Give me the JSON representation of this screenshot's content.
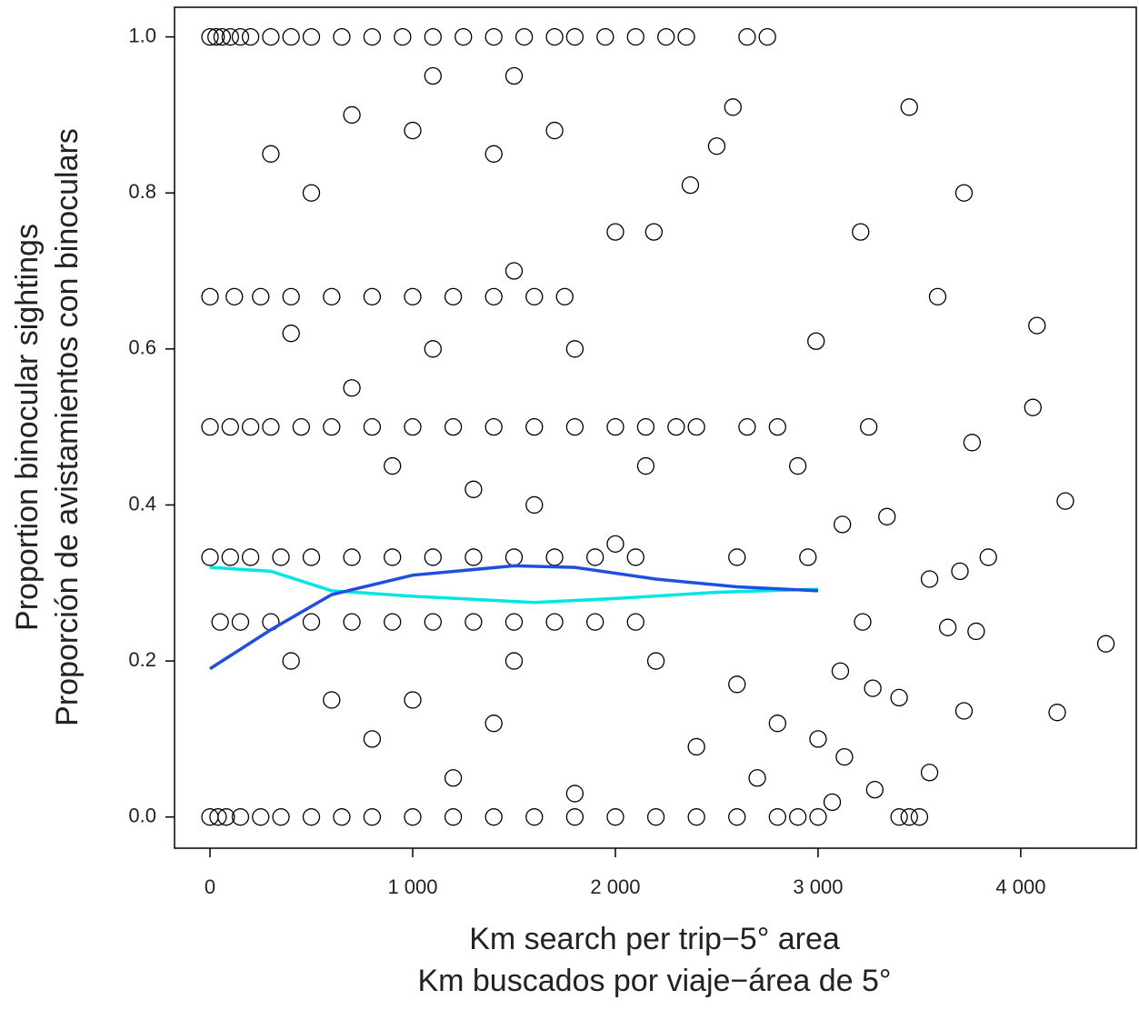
{
  "chart_data": {
    "type": "scatter",
    "x_label": [
      "Km search per trip−5° area",
      "Km buscados por viaje−área de 5°"
    ],
    "y_label": [
      "Proportion binocular sightings",
      "Proporción de avistamientos con binoculars"
    ],
    "color": "#000000",
    "x": [
      0,
      30,
      60,
      100,
      150,
      200,
      300,
      400,
      500,
      650,
      800,
      950,
      1100,
      1250,
      1400,
      1550,
      1700,
      1800,
      1950,
      2100,
      2250,
      2350,
      2650,
      2750,
      0,
      40,
      80,
      150,
      250,
      350,
      500,
      650,
      800,
      1000,
      1200,
      1400,
      1600,
      1800,
      2000,
      2200,
      2400,
      2600,
      2800,
      2900,
      3000,
      3400,
      3450,
      3500,
      0,
      100,
      200,
      300,
      450,
      600,
      800,
      1000,
      1200,
      1400,
      1600,
      1800,
      2000,
      2150,
      2300,
      2400,
      2650,
      2800,
      0,
      100,
      200,
      350,
      500,
      700,
      900,
      1100,
      1300,
      1500,
      1700,
      1900,
      2100,
      2600,
      2950,
      50,
      150,
      300,
      500,
      700,
      900,
      1100,
      1300,
      1500,
      1700,
      1900,
      2100,
      0,
      120,
      250,
      400,
      600,
      800,
      1000,
      1200,
      1400,
      1600,
      1750,
      1500,
      1100,
      2580,
      3450,
      2500,
      3720,
      2370,
      3210,
      2190,
      3590,
      4080,
      2990,
      1500,
      1800,
      4060,
      2150,
      3250,
      3760,
      4220,
      3840,
      3120,
      3340,
      3700,
      3550,
      3640,
      3780,
      4420,
      3220,
      3110,
      3270,
      3400,
      3720,
      4180,
      3130,
      3280,
      3550,
      3070,
      2700,
      2800,
      2600,
      2400,
      1800,
      1200,
      800,
      600,
      400,
      1000,
      1400,
      700,
      900,
      1300,
      1600,
      2000,
      500,
      300,
      700,
      1000,
      1400,
      1700,
      2000,
      400,
      1100,
      1500,
      2200,
      2900,
      3000
    ],
    "values": [
      1,
      1,
      1,
      1,
      1,
      1,
      1,
      1,
      1,
      1,
      1,
      1,
      1,
      1,
      1,
      1,
      1,
      1,
      1,
      1,
      1,
      1,
      1,
      1,
      0,
      0,
      0,
      0,
      0,
      0,
      0,
      0,
      0,
      0,
      0,
      0,
      0,
      0,
      0,
      0,
      0,
      0,
      0,
      0,
      0,
      0,
      0,
      0,
      0.5,
      0.5,
      0.5,
      0.5,
      0.5,
      0.5,
      0.5,
      0.5,
      0.5,
      0.5,
      0.5,
      0.5,
      0.5,
      0.5,
      0.5,
      0.5,
      0.5,
      0.5,
      0.333,
      0.333,
      0.333,
      0.333,
      0.333,
      0.333,
      0.333,
      0.333,
      0.333,
      0.333,
      0.333,
      0.333,
      0.333,
      0.333,
      0.333,
      0.25,
      0.25,
      0.25,
      0.25,
      0.25,
      0.25,
      0.25,
      0.25,
      0.25,
      0.25,
      0.25,
      0.25,
      0.667,
      0.667,
      0.667,
      0.667,
      0.667,
      0.667,
      0.667,
      0.667,
      0.667,
      0.667,
      0.667,
      0.95,
      0.95,
      0.91,
      0.91,
      0.86,
      0.8,
      0.81,
      0.75,
      0.75,
      0.667,
      0.63,
      0.61,
      0.7,
      0.6,
      0.525,
      0.45,
      0.5,
      0.48,
      0.405,
      0.333,
      0.375,
      0.385,
      0.315,
      0.305,
      0.243,
      0.238,
      0.222,
      0.25,
      0.187,
      0.165,
      0.153,
      0.136,
      0.134,
      0.077,
      0.035,
      0.057,
      0.019,
      0.05,
      0.12,
      0.17,
      0.09,
      0.03,
      0.05,
      0.1,
      0.15,
      0.2,
      0.15,
      0.12,
      0.55,
      0.45,
      0.42,
      0.4,
      0.35,
      0.8,
      0.85,
      0.9,
      0.88,
      0.85,
      0.88,
      0.75,
      0.62,
      0.6,
      0.2,
      0.2,
      0.45,
      0.1
    ],
    "lines": [
      {
        "color": "#00e5e5",
        "x": [
          0,
          300,
          600,
          1000,
          1600,
          2000,
          2500,
          3000
        ],
        "values": [
          0.32,
          0.315,
          0.29,
          0.283,
          0.275,
          0.28,
          0.288,
          0.292
        ]
      },
      {
        "color": "#1f4fe0",
        "x": [
          0,
          300,
          600,
          1000,
          1500,
          1800,
          2200,
          2600,
          3000
        ],
        "values": [
          0.19,
          0.24,
          0.285,
          0.31,
          0.322,
          0.32,
          0.305,
          0.295,
          0.29
        ]
      }
    ],
    "xlim": [
      -175,
      4570
    ],
    "ylim": [
      -0.04,
      1.038
    ],
    "xticks": [
      {
        "value": 0,
        "label": "0"
      },
      {
        "value": 1000,
        "label": "1 000"
      },
      {
        "value": 2000,
        "label": "2 000"
      },
      {
        "value": 3000,
        "label": "3 000"
      },
      {
        "value": 4000,
        "label": "4 000"
      }
    ],
    "yticks": [
      {
        "value": 0,
        "label": "0.0"
      },
      0.2,
      0.4,
      0.6,
      0.8,
      {
        "value": 1,
        "label": "1.0"
      }
    ]
  }
}
